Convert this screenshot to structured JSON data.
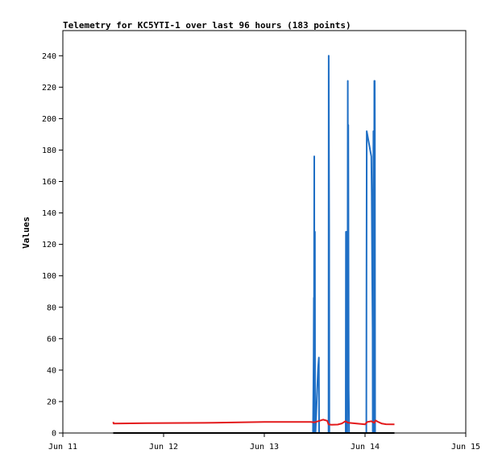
{
  "chart_data": {
    "type": "line",
    "title": "Telemetry for KC5YTI-1 over last 96 hours (183 points)",
    "xlabel": "",
    "ylabel": "Values",
    "x_ticks": [
      "Jun 11",
      "Jun 12",
      "Jun 13",
      "Jun 14",
      "Jun 15"
    ],
    "y_ticks": [
      0,
      20,
      40,
      60,
      80,
      100,
      120,
      140,
      160,
      180,
      200,
      220,
      240
    ],
    "xlim_hours": [
      0,
      96
    ],
    "ylim": [
      0,
      256
    ],
    "grid": false,
    "legend": "none",
    "series": [
      {
        "color": "#1f6fc5",
        "points": [
          [
            59.6,
            0
          ],
          [
            59.7,
            28
          ],
          [
            59.75,
            48
          ],
          [
            59.8,
            86
          ],
          [
            59.85,
            66
          ],
          [
            59.9,
            176
          ],
          [
            59.95,
            0
          ],
          [
            60.0,
            66
          ],
          [
            60.05,
            128
          ],
          [
            60.1,
            0
          ],
          [
            60.2,
            0
          ],
          [
            60.4,
            14
          ],
          [
            60.6,
            28
          ],
          [
            60.8,
            41
          ],
          [
            61.0,
            48
          ],
          [
            61.05,
            0
          ],
          [
            63.3,
            0
          ],
          [
            63.35,
            240
          ],
          [
            63.45,
            128
          ],
          [
            63.5,
            0
          ],
          [
            67.4,
            0
          ],
          [
            67.45,
            128
          ],
          [
            67.55,
            0
          ],
          [
            67.6,
            80
          ],
          [
            67.65,
            128
          ],
          [
            67.7,
            30
          ],
          [
            67.75,
            0
          ],
          [
            67.85,
            112
          ],
          [
            67.9,
            224
          ],
          [
            67.95,
            60
          ],
          [
            68.0,
            196
          ],
          [
            68.05,
            140
          ],
          [
            68.1,
            28
          ],
          [
            68.15,
            20
          ],
          [
            68.2,
            0
          ],
          [
            72.3,
            0
          ],
          [
            72.35,
            96
          ],
          [
            72.4,
            192
          ],
          [
            73.5,
            176
          ],
          [
            73.6,
            152
          ],
          [
            73.7,
            100
          ],
          [
            73.8,
            66
          ],
          [
            73.85,
            0
          ],
          [
            73.9,
            60
          ],
          [
            73.95,
            144
          ],
          [
            74.0,
            192
          ],
          [
            74.05,
            30
          ],
          [
            74.1,
            0
          ],
          [
            74.15,
            60
          ],
          [
            74.2,
            224
          ],
          [
            74.3,
            224
          ],
          [
            74.35,
            192
          ],
          [
            74.4,
            0
          ]
        ]
      },
      {
        "color": "#e31a1c",
        "points": [
          [
            12.0,
            7
          ],
          [
            12.1,
            6
          ],
          [
            20.0,
            6.3
          ],
          [
            36.0,
            6.5
          ],
          [
            48.0,
            7
          ],
          [
            59.0,
            7
          ],
          [
            60.0,
            6.8
          ],
          [
            62.0,
            8.5
          ],
          [
            63.0,
            7.8
          ],
          [
            63.3,
            5.5
          ],
          [
            64.0,
            5.2
          ],
          [
            65.5,
            5.4
          ],
          [
            66.5,
            6.1
          ],
          [
            67.3,
            7.5
          ],
          [
            68.0,
            6.5
          ],
          [
            69.0,
            6.3
          ],
          [
            70.0,
            6.0
          ],
          [
            72.0,
            5.5
          ],
          [
            72.5,
            7.0
          ],
          [
            73.5,
            7.5
          ],
          [
            74.2,
            6.5
          ],
          [
            74.5,
            8.0
          ],
          [
            75.0,
            7.2
          ],
          [
            76.0,
            6.0
          ],
          [
            77.0,
            5.6
          ],
          [
            79.0,
            5.5
          ]
        ]
      },
      {
        "color": "#000000",
        "points": [
          [
            12.0,
            0
          ],
          [
            79.0,
            0
          ]
        ]
      }
    ]
  }
}
